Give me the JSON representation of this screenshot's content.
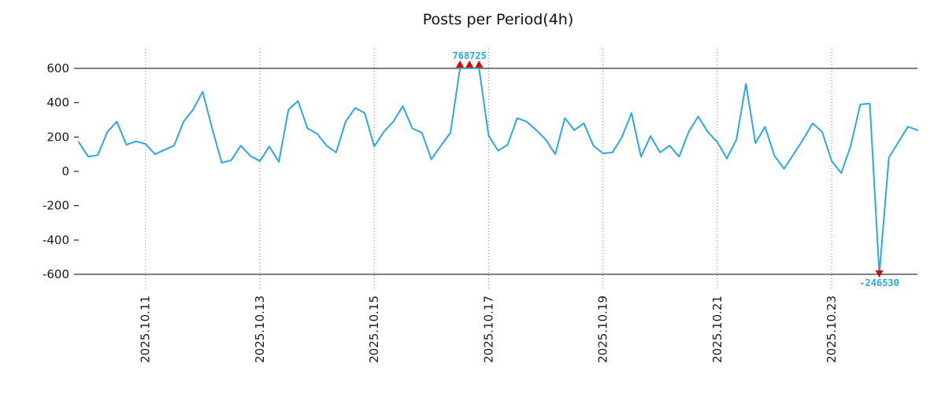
{
  "chart_data": {
    "type": "line",
    "title": "Posts per Period(4h)",
    "xlabel": "",
    "ylabel": "",
    "period": "4h",
    "grid": "vertical-dotted",
    "legend": null,
    "ylim": [
      -687,
      724
    ],
    "clip_lines": [
      600,
      -600
    ],
    "colors": {
      "line": "#2BA9E0",
      "marker": "#DD0000",
      "grid": "#8a8a8a",
      "clip_line": "#000000",
      "text": "#1a1a1a",
      "annotation": "#2BA9E0",
      "background": "#ffffff"
    },
    "y_ticks": [
      {
        "value": 600,
        "label": "600"
      },
      {
        "value": 400,
        "label": "400"
      },
      {
        "value": 200,
        "label": "200"
      },
      {
        "value": 0,
        "label": "0"
      },
      {
        "value": -200,
        "label": "-200"
      },
      {
        "value": -400,
        "label": "-400"
      },
      {
        "value": -600,
        "label": "-600"
      }
    ],
    "x_ticks": [
      {
        "index": 7,
        "label": "2025.10.11"
      },
      {
        "index": 19,
        "label": "2025.10.13"
      },
      {
        "index": 31,
        "label": "2025.10.15"
      },
      {
        "index": 43,
        "label": "2025.10.17"
      },
      {
        "index": 55,
        "label": "2025.10.19"
      },
      {
        "index": 67,
        "label": "2025.10.21"
      },
      {
        "index": 79,
        "label": "2025.10.23"
      }
    ],
    "values": [
      170,
      85,
      95,
      230,
      290,
      155,
      175,
      160,
      100,
      125,
      150,
      290,
      360,
      465,
      250,
      50,
      65,
      150,
      90,
      60,
      145,
      55,
      360,
      410,
      250,
      220,
      150,
      110,
      290,
      370,
      340,
      145,
      230,
      290,
      380,
      250,
      225,
      70,
      150,
      225,
      768,
      772,
      725,
      210,
      120,
      155,
      310,
      290,
      240,
      185,
      100,
      310,
      240,
      280,
      150,
      105,
      110,
      200,
      340,
      85,
      205,
      110,
      150,
      85,
      230,
      320,
      230,
      170,
      75,
      185,
      510,
      165,
      260,
      90,
      15,
      100,
      185,
      280,
      230,
      60,
      -10,
      150,
      390,
      395,
      -246530,
      80,
      170,
      260,
      240
    ],
    "annotations": [
      {
        "text": "768725",
        "position": "above",
        "marker": "triangle-up",
        "marker_color": "#DD0000"
      },
      {
        "text": "-246530",
        "position": "below",
        "marker": "triangle-down",
        "marker_color": "#DD0000"
      }
    ]
  }
}
